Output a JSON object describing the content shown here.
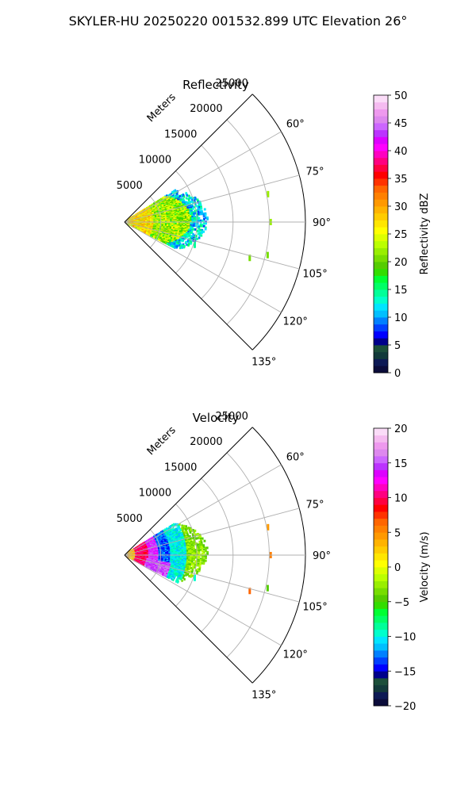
{
  "figure_title": "SKYLER-HU  20250220  001532.899 UTC Elevation 26°",
  "chart_data": [
    {
      "type": "heatmap",
      "subtype": "polar-sector",
      "title": "Reflectivity",
      "radial_axis_label": "Meters",
      "radial_ticks": [
        "5000",
        "10000",
        "15000",
        "20000",
        "25000"
      ],
      "radial_tick_values": [
        5000,
        10000,
        15000,
        20000,
        25000
      ],
      "radial_max": 25000,
      "grid_radii": [
        5000,
        10000,
        15000,
        20000,
        25000
      ],
      "angle_range_deg": [
        45,
        135
      ],
      "angle_ticks": [
        "60°",
        "75°",
        "90°",
        "105°",
        "120°",
        "135°"
      ],
      "angle_tick_values": [
        60,
        75,
        90,
        105,
        120,
        135
      ],
      "grid": true,
      "colorbar": {
        "label": "Reflectivity dBZ",
        "min": 0,
        "max": 50,
        "ticks": [
          "0",
          "5",
          "10",
          "15",
          "20",
          "25",
          "30",
          "35",
          "40",
          "45",
          "50"
        ],
        "tick_values": [
          0,
          5,
          10,
          15,
          20,
          25,
          30,
          35,
          40,
          45,
          50
        ],
        "colors": [
          "#0b0c3a",
          "#0d1a55",
          "#123a3a",
          "#1c4f3a",
          "#00008b",
          "#0000ff",
          "#0040ff",
          "#0080ff",
          "#00bfff",
          "#00e5ff",
          "#00ffcc",
          "#00ff99",
          "#00ff66",
          "#00ff33",
          "#33dd00",
          "#55cc00",
          "#77dd00",
          "#99ee00",
          "#bbff00",
          "#ddff00",
          "#ffff00",
          "#ffe600",
          "#ffcc00",
          "#ffb300",
          "#ff9900",
          "#ff8000",
          "#ff6600",
          "#ff3300",
          "#ff0000",
          "#ff0040",
          "#ff0080",
          "#ff00c0",
          "#ff00ff",
          "#dd00ff",
          "#bb33ff",
          "#cc66ff",
          "#dd88ee",
          "#ee99ee",
          "#f5bbf0",
          "#fbdcf8"
        ]
      },
      "echo_region": {
        "range_m": [
          0,
          11500
        ],
        "azimuth_deg": [
          58,
          117
        ],
        "value_range": [
          8,
          30
        ],
        "typical_value": 22,
        "near_field_value": 27
      },
      "isolated_echoes": [
        {
          "azimuth_deg": 79,
          "range_m": 20200,
          "value": 22
        },
        {
          "azimuth_deg": 90,
          "range_m": 20200,
          "value": 22
        },
        {
          "azimuth_deg": 103,
          "range_m": 20300,
          "value": 20
        },
        {
          "azimuth_deg": 106,
          "range_m": 18000,
          "value": 20
        },
        {
          "azimuth_deg": 108,
          "range_m": 10200,
          "value": 14
        }
      ]
    },
    {
      "type": "heatmap",
      "subtype": "polar-sector",
      "title": "Velocity",
      "radial_axis_label": "Meters",
      "radial_ticks": [
        "5000",
        "10000",
        "15000",
        "20000",
        "25000"
      ],
      "radial_tick_values": [
        5000,
        10000,
        15000,
        20000,
        25000
      ],
      "radial_max": 25000,
      "grid_radii": [
        5000,
        10000,
        15000,
        20000,
        25000
      ],
      "angle_range_deg": [
        45,
        135
      ],
      "angle_ticks": [
        "60°",
        "75°",
        "90°",
        "105°",
        "120°",
        "135°"
      ],
      "angle_tick_values": [
        60,
        75,
        90,
        105,
        120,
        135
      ],
      "grid": true,
      "colorbar": {
        "label": "Velocity (m/s)",
        "min": -20,
        "max": 20,
        "ticks": [
          "−20",
          "−15",
          "−10",
          "−5",
          "0",
          "5",
          "10",
          "15",
          "20"
        ],
        "tick_values": [
          -20,
          -15,
          -10,
          -5,
          0,
          5,
          10,
          15,
          20
        ],
        "colors": [
          "#0b0c3a",
          "#0d1a55",
          "#123a3a",
          "#1c4f3a",
          "#00008b",
          "#0000ff",
          "#0040ff",
          "#0080ff",
          "#00bfff",
          "#00e5ff",
          "#00ffcc",
          "#00ff99",
          "#00ff66",
          "#00ff33",
          "#33dd00",
          "#55cc00",
          "#77dd00",
          "#99ee00",
          "#bbff00",
          "#ddff00",
          "#ffff00",
          "#ffe600",
          "#ffcc00",
          "#ffb300",
          "#ff9900",
          "#ff8000",
          "#ff6600",
          "#ff3300",
          "#ff0000",
          "#ff0040",
          "#ff0080",
          "#ff00c0",
          "#ff00ff",
          "#dd00ff",
          "#bb33ff",
          "#cc66ff",
          "#dd88ee",
          "#ee99ee",
          "#f5bbf0",
          "#fbdcf8"
        ]
      },
      "velocity_bands": [
        {
          "range_m": [
            0,
            1500
          ],
          "value": 3
        },
        {
          "range_m": [
            1500,
            3200
          ],
          "value": 10
        },
        {
          "range_m": [
            3200,
            4800
          ],
          "value": 14
        },
        {
          "range_m": [
            4800,
            6200
          ],
          "value": -13
        },
        {
          "range_m": [
            6200,
            8500
          ],
          "value": -10
        },
        {
          "range_m": [
            8500,
            11500
          ],
          "value": -3
        }
      ],
      "echo_region": {
        "range_m": [
          0,
          11500
        ],
        "azimuth_deg": [
          58,
          117
        ]
      },
      "isolated_echoes": [
        {
          "azimuth_deg": 79,
          "range_m": 20200,
          "value": 4
        },
        {
          "azimuth_deg": 90,
          "range_m": 20200,
          "value": 5
        },
        {
          "azimuth_deg": 103,
          "range_m": 20300,
          "value": -5
        },
        {
          "azimuth_deg": 106,
          "range_m": 18000,
          "value": 6
        },
        {
          "azimuth_deg": 108,
          "range_m": 10200,
          "value": -10
        }
      ]
    }
  ]
}
